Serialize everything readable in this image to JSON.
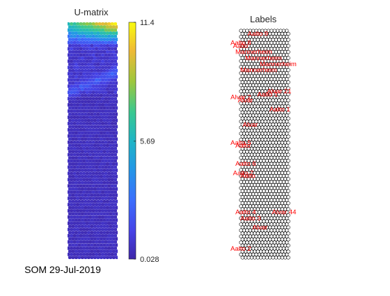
{
  "figure_caption": "SOM 29-Jul-2019",
  "chart_data": [
    {
      "type": "heatmap",
      "title": "U-matrix",
      "grid": "hexagonal",
      "colormap": "parula",
      "colorbar": {
        "min": 0.028,
        "max": 11.4,
        "ticks": [
          11.4,
          5.69,
          0.028
        ],
        "tick_labels": [
          "11.4",
          "5.69",
          "0.028"
        ]
      },
      "description_of_values": "highest distances (yellow-green) concentrated at the top rows, dark blue (near minimum) over the remainder with a faint lighter diagonal band in the upper third",
      "colors": {
        "low": "#3e26a8",
        "mid": "#1fb5c5",
        "high": "#f9fb0e"
      }
    },
    {
      "type": "scatter",
      "title": "Labels",
      "grid": "hexagonal",
      "label_color": "#ff0000",
      "labels": [
        {
          "text": "Aalto 9",
          "row": 1
        },
        {
          "text": "Aalto 8",
          "row": 4
        },
        {
          "text": "Aalto",
          "row": 5
        },
        {
          "text": "Mannerheim",
          "row": 7
        },
        {
          "text": "Mannerheim",
          "row": 9
        },
        {
          "text": "Mannerheim",
          "row": 11
        },
        {
          "text": "Mannerheim",
          "row": 13
        },
        {
          "text": "Alvar 21",
          "row": 20
        },
        {
          "text": "Aalto 1",
          "row": 21
        },
        {
          "text": "Alvar 2",
          "row": 22
        },
        {
          "text": "Alvar",
          "row": 23
        },
        {
          "text": "Aalto 1",
          "row": 26
        },
        {
          "text": "Alvar",
          "row": 31
        },
        {
          "text": "Aalto 5",
          "row": 37
        },
        {
          "text": "Aalto",
          "row": 38
        },
        {
          "text": "Aalto 6",
          "row": 44
        },
        {
          "text": "Aalto 7",
          "row": 47
        },
        {
          "text": "Aalto",
          "row": 48
        },
        {
          "text": "Aalto 4",
          "row": 60
        },
        {
          "text": "Alvar 44",
          "row": 60
        },
        {
          "text": "Aalto 3",
          "row": 62
        },
        {
          "text": "Alvar",
          "row": 65
        },
        {
          "text": "Aalto 2",
          "row": 72
        }
      ]
    }
  ]
}
